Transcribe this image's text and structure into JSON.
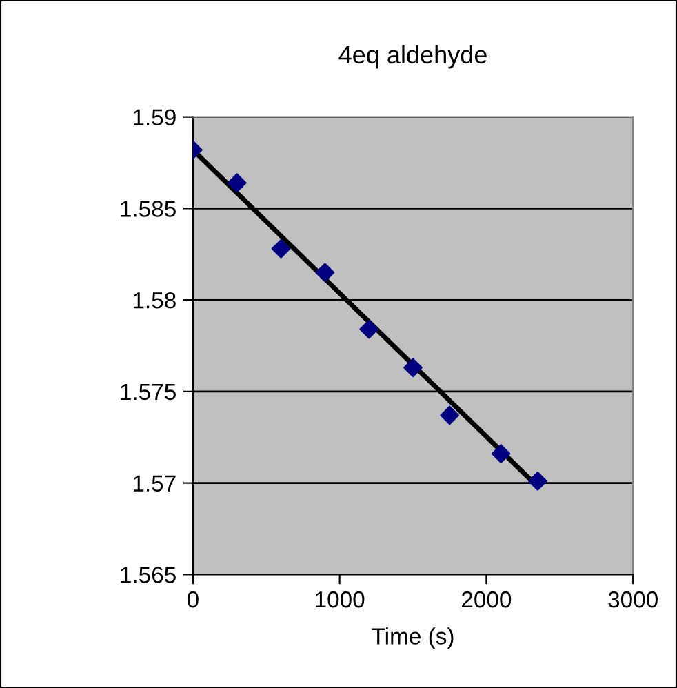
{
  "chart_data": {
    "type": "scatter",
    "title": "4eq aldehyde",
    "xlabel": "Time (s)",
    "series": [
      {
        "color": "#000080",
        "marker": "diamond",
        "x": [
          0,
          300,
          600,
          900,
          1200,
          1500,
          1750,
          2100,
          2350
        ],
        "values": [
          1.5882,
          1.5864,
          1.5828,
          1.5815,
          1.5784,
          1.5763,
          1.5737,
          1.5716,
          1.5701
        ]
      },
      {
        "type": "line",
        "color": "#000000",
        "marker": "none",
        "line_style": "solid",
        "x": [
          0,
          2350
        ],
        "values": [
          1.5882,
          1.5698
        ]
      }
    ],
    "xlim": [
      0,
      3000
    ],
    "xticks": [
      0,
      1000,
      2000,
      3000
    ],
    "ylim": [
      1.565,
      1.59
    ],
    "yticks": [
      1.565,
      1.57,
      1.575,
      1.58,
      1.585,
      1.59
    ],
    "grid": "y",
    "legend": false
  }
}
